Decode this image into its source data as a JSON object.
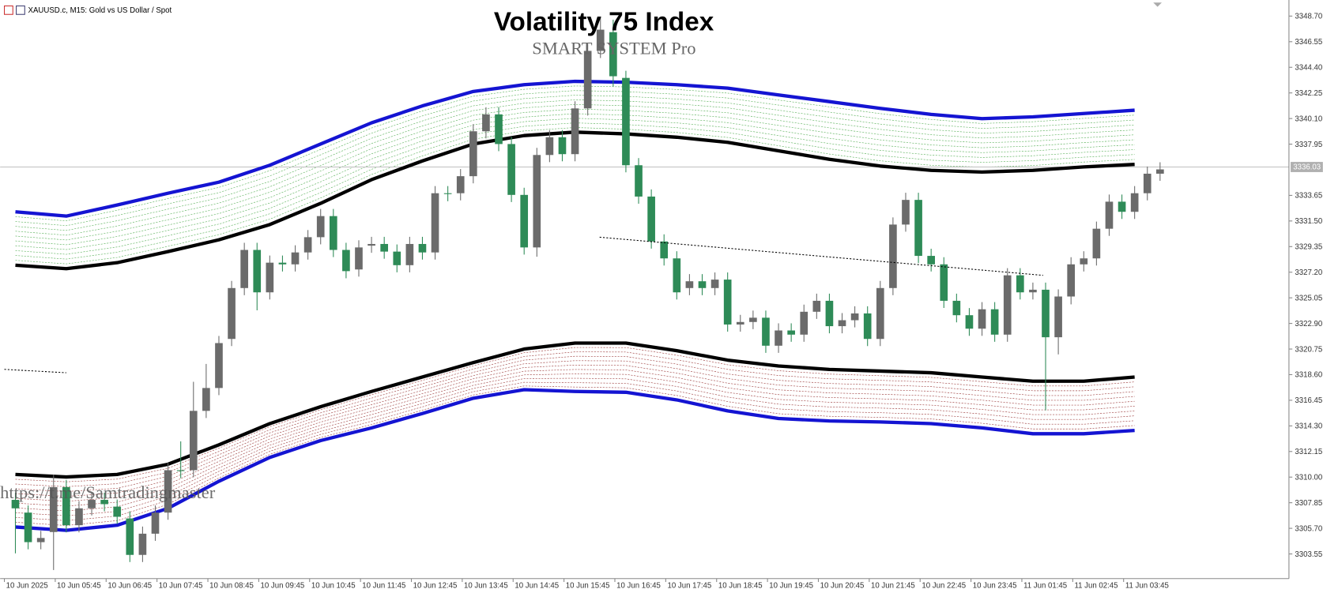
{
  "chart_data": {
    "type": "candlestick",
    "instrument_label": "XAUUSD.c, M15:  Gold vs US Dollar / Spot",
    "title": "Volatility 75 Index",
    "subtitle": "SMART SYSTEM Pro",
    "watermark": "https://t.me/Samtradingmaster",
    "categories": [
      "10 Jun 2025",
      null,
      null,
      null,
      "10 Jun 05:45",
      null,
      null,
      null,
      "10 Jun 06:45",
      null,
      null,
      null,
      "10 Jun 07:45",
      null,
      null,
      null,
      "10 Jun 08:45",
      null,
      null,
      null,
      "10 Jun 09:45",
      null,
      null,
      null,
      "10 Jun 10:45",
      null,
      null,
      null,
      "10 Jun 11:45",
      null,
      null,
      null,
      "10 Jun 12:45",
      null,
      null,
      null,
      "10 Jun 13:45",
      null,
      null,
      null,
      "10 Jun 14:45",
      null,
      null,
      null,
      "10 Jun 15:45",
      null,
      null,
      null,
      "10 Jun 16:45",
      null,
      null,
      null,
      "10 Jun 17:45",
      null,
      null,
      null,
      "10 Jun 18:45",
      null,
      null,
      null,
      "10 Jun 19:45",
      null,
      null,
      null,
      "10 Jun 20:45",
      null,
      null,
      null,
      "10 Jun 21:45",
      null,
      null,
      null,
      "10 Jun 22:45",
      null,
      null,
      null,
      "10 Jun 23:45",
      null,
      null,
      null,
      "11 Jun 01:45",
      null,
      null,
      null,
      "11 Jun 02:45",
      null,
      null,
      null,
      "11 Jun 03:45",
      null,
      null
    ],
    "open": [
      3308.09,
      3307.02,
      3304.54,
      3305.39,
      3309.16,
      3305.96,
      3307.38,
      3308.09,
      3307.52,
      3306.53,
      3303.47,
      3305.25,
      3307.02,
      3310.58,
      3310.58,
      3315.56,
      3317.48,
      3321.6,
      3325.87,
      3329.07,
      3325.51,
      3328.0,
      3327.86,
      3328.86,
      3330.14,
      3331.91,
      3329.07,
      3327.43,
      3329.43,
      3329.57,
      3328.93,
      3327.79,
      3329.57,
      3328.86,
      3333.83,
      3333.83,
      3335.26,
      3339.03,
      3340.45,
      3337.96,
      3333.69,
      3329.28,
      3337.04,
      3338.53,
      3337.11,
      3340.95,
      3345.78,
      3347.35,
      3343.51,
      3336.18,
      3333.55,
      3329.78,
      3328.36,
      3325.87,
      3326.44,
      3325.87,
      3326.58,
      3322.81,
      3323.02,
      3323.38,
      3321.03,
      3322.31,
      3321.96,
      3323.88,
      3324.8,
      3322.67,
      3323.17,
      3323.74,
      3321.6,
      3325.87,
      3331.2,
      3333.27,
      3328.57,
      3327.86,
      3324.8,
      3323.59,
      3322.46,
      3324.09,
      3321.96,
      3326.94,
      3325.51,
      3325.73,
      3321.74,
      3325.16,
      3327.86,
      3328.36,
      3330.85,
      3333.12,
      3332.27,
      3333.83,
      3335.47
    ],
    "high": [
      3308.69,
      3307.62,
      3305.49,
      3310.2,
      3309.76,
      3307.98,
      3308.69,
      3308.69,
      3308.12,
      3307.13,
      3305.85,
      3307.62,
      3311.18,
      3313.0,
      3318.0,
      3319.5,
      3321.85,
      3326.47,
      3329.67,
      3329.67,
      3328.6,
      3328.6,
      3329.46,
      3330.74,
      3332.51,
      3332.51,
      3329.67,
      3329.88,
      3330.17,
      3330.17,
      3329.53,
      3330.17,
      3330.17,
      3334.43,
      3334.43,
      3335.86,
      3339.63,
      3341.05,
      3341.05,
      3338.56,
      3334.29,
      3337.64,
      3339.13,
      3339.13,
      3341.55,
      3346.38,
      3348.6,
      3348.4,
      3344.11,
      3336.78,
      3334.15,
      3330.38,
      3328.96,
      3327.04,
      3327.04,
      3327.18,
      3327.18,
      3323.62,
      3323.98,
      3323.98,
      3322.91,
      3322.91,
      3324.48,
      3325.4,
      3325.4,
      3323.77,
      3324.34,
      3324.34,
      3326.47,
      3331.8,
      3333.87,
      3333.87,
      3329.17,
      3328.46,
      3325.4,
      3324.19,
      3324.69,
      3324.69,
      3327.54,
      3327.54,
      3326.33,
      3326.33,
      3325.76,
      3328.46,
      3328.96,
      3331.45,
      3333.72,
      3333.72,
      3334.43,
      3336.07,
      3336.43
    ],
    "low": [
      3303.6,
      3303.94,
      3303.94,
      3302.2,
      3305.36,
      3305.36,
      3306.78,
      3307.13,
      3306.07,
      3302.87,
      3302.87,
      3304.65,
      3306.42,
      3309.91,
      3309.98,
      3314.96,
      3316.88,
      3321.0,
      3325.27,
      3324.0,
      3324.91,
      3327.26,
      3327.26,
      3328.26,
      3329.54,
      3328.47,
      3326.69,
      3326.83,
      3328.83,
      3328.33,
      3327.19,
      3327.19,
      3328.26,
      3328.26,
      3333.16,
      3333.23,
      3334.66,
      3338.43,
      3337.36,
      3333.09,
      3328.68,
      3328.5,
      3336.44,
      3336.51,
      3336.51,
      3340.35,
      3345.18,
      3342.8,
      3335.58,
      3332.95,
      3329.18,
      3327.76,
      3324.91,
      3325.27,
      3325.27,
      3325.27,
      3322.21,
      3322.21,
      3322.42,
      3320.43,
      3320.43,
      3321.36,
      3321.36,
      3323.28,
      3322.07,
      3322.07,
      3322.57,
      3321.0,
      3321.0,
      3325.27,
      3330.6,
      3327.97,
      3327.26,
      3324.2,
      3322.99,
      3321.86,
      3321.86,
      3321.36,
      3321.36,
      3324.91,
      3324.91,
      3315.6,
      3320.3,
      3324.5,
      3327.26,
      3327.76,
      3330.25,
      3331.67,
      3331.67,
      3333.23,
      3334.87
    ],
    "close": [
      3307.38,
      3304.54,
      3304.89,
      3309.16,
      3305.96,
      3307.38,
      3308.09,
      3307.73,
      3306.67,
      3303.47,
      3305.25,
      3307.02,
      3310.58,
      3310.51,
      3315.56,
      3317.48,
      3321.25,
      3325.87,
      3329.07,
      3325.51,
      3328.0,
      3327.86,
      3328.86,
      3330.14,
      3331.91,
      3329.07,
      3327.29,
      3329.28,
      3329.57,
      3328.93,
      3327.79,
      3329.57,
      3328.86,
      3333.83,
      3333.76,
      3335.26,
      3339.03,
      3340.45,
      3337.96,
      3333.69,
      3329.28,
      3337.04,
      3338.53,
      3337.11,
      3340.95,
      3345.78,
      3347.56,
      3343.65,
      3336.18,
      3333.55,
      3329.78,
      3328.36,
      3325.51,
      3326.44,
      3325.87,
      3326.58,
      3322.81,
      3323.02,
      3323.38,
      3321.03,
      3322.31,
      3321.96,
      3323.88,
      3324.8,
      3322.67,
      3323.17,
      3323.74,
      3321.6,
      3325.87,
      3331.2,
      3333.27,
      3328.57,
      3327.86,
      3324.8,
      3323.59,
      3322.46,
      3324.09,
      3321.96,
      3326.94,
      3325.51,
      3325.73,
      3321.74,
      3325.16,
      3327.86,
      3328.36,
      3330.85,
      3333.12,
      3332.27,
      3333.83,
      3335.47,
      3335.83
    ],
    "bull_color": "#6b6b6b",
    "bear_color": "#2e8b57",
    "bands": [
      {
        "color": "#1414d2",
        "values": [
          3332.27,
          3331.91,
          3332.84,
          3333.83,
          3334.76,
          3336.18,
          3337.96,
          3339.74,
          3341.16,
          3342.37,
          3342.94,
          3343.22,
          3343.15,
          3342.94,
          3342.65,
          3342.08,
          3341.52,
          3340.95,
          3340.45,
          3340.09,
          3340.24,
          3340.52,
          3340.8
        ]
      },
      {
        "color": "#000000",
        "values": [
          3327.79,
          3327.5,
          3328.0,
          3328.93,
          3329.92,
          3331.2,
          3332.98,
          3334.97,
          3336.54,
          3337.96,
          3338.67,
          3338.96,
          3338.81,
          3338.53,
          3338.1,
          3337.39,
          3336.68,
          3336.11,
          3335.75,
          3335.61,
          3335.75,
          3336.04,
          3336.25
        ]
      },
      {
        "color": "#000000",
        "values": [
          3310.22,
          3310.01,
          3310.22,
          3311.08,
          3312.71,
          3314.49,
          3315.91,
          3317.19,
          3318.4,
          3319.61,
          3320.75,
          3321.25,
          3321.25,
          3320.61,
          3319.82,
          3319.33,
          3319.04,
          3318.9,
          3318.76,
          3318.4,
          3318.05,
          3318.05,
          3318.4
        ]
      },
      {
        "color": "#1414d2",
        "values": [
          3305.81,
          3305.53,
          3305.96,
          3307.38,
          3309.65,
          3311.65,
          3313.07,
          3314.13,
          3315.34,
          3316.62,
          3317.34,
          3317.19,
          3317.12,
          3316.48,
          3315.56,
          3314.92,
          3314.71,
          3314.63,
          3314.49,
          3314.13,
          3313.64,
          3313.64,
          3313.92
        ]
      }
    ],
    "fill_colors": [
      "#3aa13a",
      "#8b1a1a"
    ],
    "current_price": 3336.03,
    "ylim": [
      3301.48,
      3350.05
    ],
    "yticks": [
      {
        "value": 3348.7,
        "label": "3348.70"
      },
      3346.55,
      {
        "value": 3344.4,
        "label": "3344.40"
      },
      3342.25,
      {
        "value": 3340.1,
        "label": "3340.10"
      },
      3337.95,
      3333.65,
      {
        "value": 3331.5,
        "label": "3331.50"
      },
      3329.35,
      {
        "value": 3327.2,
        "label": "3327.20"
      },
      3325.05,
      {
        "value": 3322.9,
        "label": "3322.90"
      },
      3320.75,
      {
        "value": 3318.6,
        "label": "3318.60"
      },
      3316.45,
      {
        "value": 3314.3,
        "label": "3314.30"
      },
      3312.15,
      {
        "value": 3310,
        "label": "3310.00"
      },
      3307.85,
      {
        "value": 3305.7,
        "label": "3305.70"
      },
      3303.55
    ]
  }
}
